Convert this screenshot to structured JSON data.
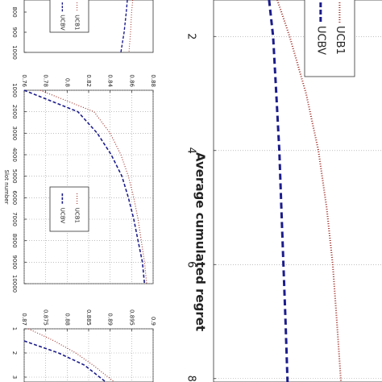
{
  "chart_data": [
    {
      "type": "line",
      "xticks": [
        800,
        900,
        1000
      ],
      "xlim": [
        740,
        1000
      ],
      "ylim": [
        0.76,
        0.88
      ],
      "x": [
        740,
        800,
        900,
        1000
      ],
      "series": [
        {
          "name": "UCB1",
          "color": "#a0302a",
          "style": "dotted",
          "values": [
            0.861,
            0.86,
            0.859,
            0.8575
          ]
        },
        {
          "name": "UCBV",
          "color": "#1c1c8c",
          "style": "dashed",
          "values": [
            0.856,
            0.855,
            0.853,
            0.85
          ]
        }
      ]
    },
    {
      "type": "line",
      "xlabel": "Slot number",
      "xlim": [
        1000,
        10000
      ],
      "xticks": [
        1000,
        2000,
        3000,
        4000,
        5000,
        6000,
        7000,
        8000,
        9000,
        10000
      ],
      "ylim": [
        0.76,
        0.88
      ],
      "yticks": [
        0.76,
        0.78,
        0.8,
        0.82,
        0.84,
        0.86,
        0.88
      ],
      "grid": true,
      "x": [
        1000,
        2000,
        3000,
        4000,
        5000,
        6000,
        7000,
        8000,
        9000,
        10000
      ],
      "series": [
        {
          "name": "UCB1",
          "color": "#a0302a",
          "style": "dotted",
          "values": [
            0.775,
            0.825,
            0.84,
            0.85,
            0.857,
            0.862,
            0.866,
            0.869,
            0.872,
            0.874
          ]
        },
        {
          "name": "UCBV",
          "color": "#1c1c8c",
          "style": "dashed",
          "values": [
            0.76,
            0.81,
            0.828,
            0.841,
            0.851,
            0.857,
            0.862,
            0.866,
            0.87,
            0.872
          ]
        }
      ]
    },
    {
      "type": "line",
      "xlim": [
        1,
        3.2
      ],
      "xticks": [
        1,
        2,
        3
      ],
      "ylim": [
        0.87,
        0.9
      ],
      "yticks": [
        0.87,
        0.875,
        0.88,
        0.885,
        0.89,
        0.895,
        0.9
      ],
      "grid": true,
      "x": [
        1,
        1.5,
        2,
        2.5,
        3.2
      ],
      "series": [
        {
          "name": "UCB1",
          "color": "#a0302a",
          "style": "dotted",
          "values": [
            0.871,
            0.877,
            0.882,
            0.886,
            0.891
          ]
        },
        {
          "name": "UCBV",
          "color": "#1c1c8c",
          "style": "dashed",
          "values": [
            null,
            0.87,
            0.878,
            0.884,
            0.889
          ]
        }
      ]
    },
    {
      "type": "line",
      "title": "Average cumulated regret",
      "xlim": [
        1.36,
        8.06
      ],
      "xticks": [
        2,
        4,
        6,
        8
      ],
      "ylim": [
        0,
        1
      ],
      "grid": true,
      "x": [
        1.36,
        2,
        3,
        4,
        5,
        6,
        7,
        8.06
      ],
      "series": [
        {
          "name": "UCB1",
          "color": "#a0302a",
          "style": "dotted",
          "values": [
            0.31,
            0.37,
            0.45,
            0.51,
            0.55,
            0.58,
            0.6,
            0.62
          ]
        },
        {
          "name": "UCBV",
          "color": "#1c1c8c",
          "style": "dashed",
          "values": [
            0.27,
            0.29,
            0.305,
            0.32,
            0.33,
            0.34,
            0.35,
            0.36
          ]
        }
      ]
    }
  ]
}
